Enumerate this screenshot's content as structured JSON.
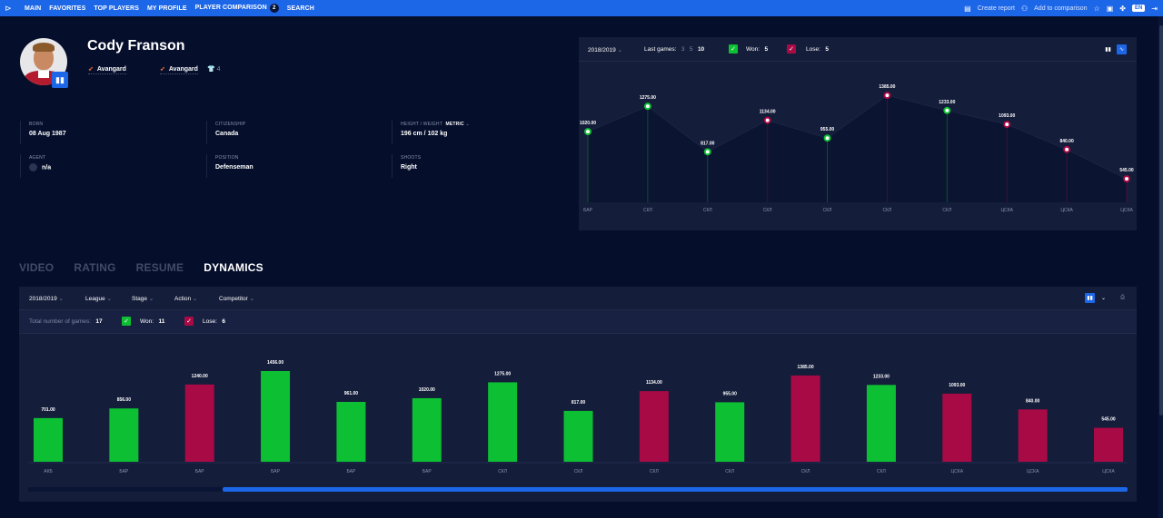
{
  "nav": {
    "items": [
      "MAIN",
      "FAVORITES",
      "TOP PLAYERS",
      "MY PROFILE",
      "PLAYER COMPARISON",
      "SEARCH"
    ],
    "comparison_count": "2",
    "create_report": "Create report",
    "add_to_comparison": "Add to comparison",
    "language": "EN"
  },
  "player": {
    "name": "Cody Franson",
    "team1": "Avangard",
    "team2": "Avangard",
    "jersey_count": "4"
  },
  "info": {
    "born_label": "BORN",
    "born": "08 Aug 1987",
    "citizenship_label": "CITIZENSHIP",
    "citizenship": "Canada",
    "hw_label": "HEIGHT / WEIGHT",
    "metric": "Metric",
    "hw": "196 cm / 102 kg",
    "agent_label": "AGENT",
    "agent": "n/a",
    "position_label": "POSITION",
    "position": "Defenseman",
    "shoots_label": "SHOOTS",
    "shoots": "Right"
  },
  "top_panel": {
    "season": "2018/2019",
    "last_games_label": "Last games:",
    "last_games_options": [
      "3",
      "5",
      "10"
    ],
    "won_label": "Won:",
    "won": "5",
    "lose_label": "Lose:",
    "lose": "5"
  },
  "tabs": [
    "VIDEO",
    "RATING",
    "RESUME",
    "DYNAMICS"
  ],
  "bottom_panel": {
    "season": "2018/2019",
    "filters": [
      "League",
      "Stage",
      "Action",
      "Competitor"
    ],
    "total_label": "Total number of games:",
    "total": "17",
    "won_label": "Won:",
    "won": "11",
    "lose_label": "Lose:",
    "lose": "6"
  },
  "colors": {
    "won": "#0dbf33",
    "lose": "#a80a45",
    "accent": "#1c66e8"
  },
  "chart_data": [
    {
      "type": "line",
      "categories": [
        "БАР",
        "СКЛ",
        "СКЛ",
        "СКЛ",
        "СКЛ",
        "СКЛ",
        "СКЛ",
        "ЦСКА",
        "ЦСКА",
        "ЦСКА"
      ],
      "values": [
        1020.0,
        1275.0,
        817.0,
        1134.0,
        955.0,
        1385.0,
        1233.0,
        1093.0,
        840.0,
        545.0
      ],
      "results": [
        "won",
        "won",
        "won",
        "lose",
        "won",
        "lose",
        "won",
        "lose",
        "lose",
        "lose"
      ],
      "grid": false
    },
    {
      "type": "bar",
      "categories": [
        "АКБ",
        "БАР",
        "БАР",
        "БАР",
        "БАР",
        "БАР",
        "СКЛ",
        "СКЛ",
        "СКЛ",
        "СКЛ",
        "СКЛ",
        "СКЛ",
        "ЦСКА",
        "ЦСКА",
        "ЦСКА"
      ],
      "values": [
        701.0,
        856.0,
        1240.0,
        1456.0,
        961.0,
        1020.0,
        1275.0,
        817.0,
        1134.0,
        955.0,
        1385.0,
        1233.0,
        1093.0,
        840.0,
        545.0
      ],
      "results": [
        "won",
        "won",
        "lose",
        "won",
        "won",
        "won",
        "won",
        "won",
        "lose",
        "won",
        "lose",
        "won",
        "lose",
        "lose",
        "lose"
      ],
      "grid": false
    }
  ]
}
